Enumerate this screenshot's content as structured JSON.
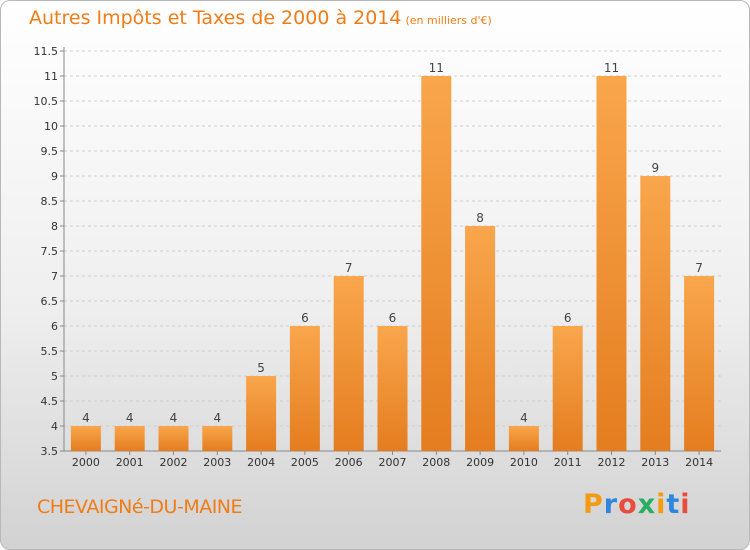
{
  "title": "Autres Impôts et Taxes de 2000 à 2014",
  "title_unit": "(en milliers d'€)",
  "commune": "CHEVAIGNé-DU-MAINE",
  "logo": {
    "letters": [
      "P",
      "r",
      "o",
      "x",
      "i",
      "t",
      "i"
    ],
    "colors": [
      "#f39c12",
      "#2e86de",
      "#e74c3c",
      "#27ae60",
      "#f39c12",
      "#2e86de",
      "#e74c3c"
    ]
  },
  "colors": {
    "accent": "#f07c17",
    "bar_top": "#f9a64c",
    "bar_bottom": "#e47d1f"
  },
  "chart_data": {
    "type": "bar",
    "title": "Autres Impôts et Taxes de 2000 à 2014",
    "categories": [
      "2000",
      "2001",
      "2002",
      "2003",
      "2004",
      "2005",
      "2006",
      "2007",
      "2008",
      "2009",
      "2010",
      "2011",
      "2012",
      "2013",
      "2014"
    ],
    "values": [
      4,
      4,
      4,
      4,
      5,
      6,
      7,
      6,
      11,
      8,
      4,
      6,
      11,
      9,
      7
    ],
    "ylim": [
      3.5,
      11.5
    ],
    "yticks": [
      3.5,
      4,
      4.5,
      5,
      5.5,
      6,
      6.5,
      7,
      7.5,
      8,
      8.5,
      9,
      9.5,
      10,
      10.5,
      11,
      11.5
    ],
    "ytick_labels": [
      "3.5",
      "4",
      "4.5",
      "5",
      "5.5",
      "6",
      "6.5",
      "7",
      "7.5",
      "8",
      "8.5",
      "9",
      "9.5",
      "10",
      "10.5",
      "11",
      "11.5"
    ],
    "grid": true,
    "xlabel": "",
    "ylabel": ""
  }
}
